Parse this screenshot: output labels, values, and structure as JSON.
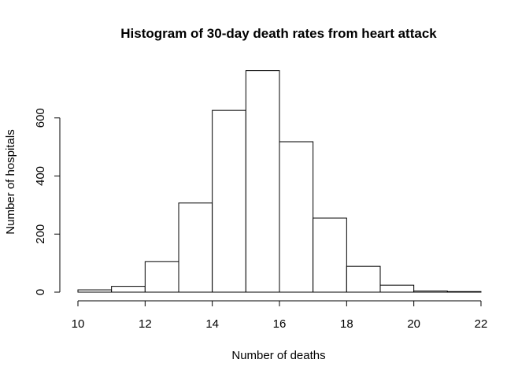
{
  "chart_data": {
    "type": "bar",
    "title": "Histogram of 30-day death rates from heart attack",
    "xlabel": "Number of deaths",
    "ylabel": "Number of hospitals",
    "bin_edges": [
      10,
      11,
      12,
      13,
      14,
      15,
      16,
      17,
      18,
      19,
      20,
      21,
      22
    ],
    "values": [
      8,
      20,
      105,
      307,
      626,
      763,
      518,
      255,
      89,
      24,
      4,
      2
    ],
    "xlim": [
      10,
      22
    ],
    "ylim": [
      0,
      800
    ],
    "x_ticks": [
      10,
      12,
      14,
      16,
      18,
      20,
      22
    ],
    "y_ticks": [
      0,
      200,
      400,
      600
    ],
    "grid": false,
    "colors": {
      "bar_fill": "#ffffff",
      "bar_stroke": "#000000"
    }
  }
}
